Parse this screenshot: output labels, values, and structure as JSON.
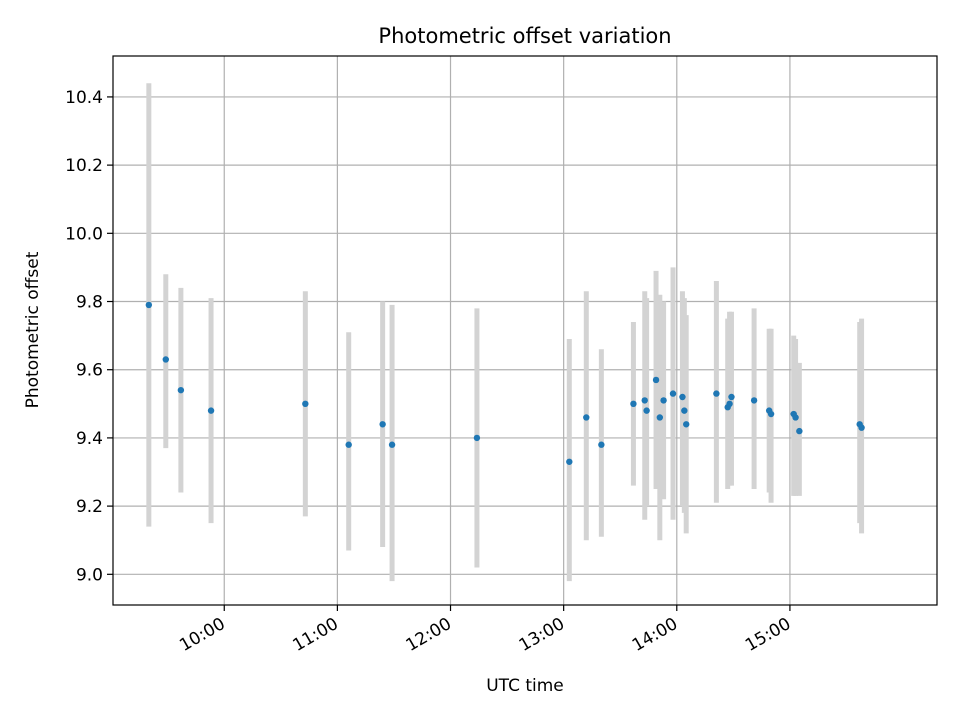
{
  "chart_data": {
    "type": "scatter",
    "title": "Photometric offset variation",
    "xlabel": "UTC time",
    "ylabel": "Photometric offset",
    "x_unit": "UTC time of day",
    "xlim": [
      "09:01",
      "16:18"
    ],
    "ylim": [
      8.91,
      10.52
    ],
    "grid": true,
    "colors": {
      "point": "#1f77b4",
      "errorbar": "#d3d3d3",
      "grid": "#b0b0b0"
    },
    "x_ticks": [
      "10:00",
      "11:00",
      "12:00",
      "13:00",
      "14:00",
      "15:00"
    ],
    "y_ticks": [
      "9.0",
      "9.2",
      "9.4",
      "9.6",
      "9.8",
      "10.0",
      "10.2",
      "10.4"
    ],
    "points": [
      {
        "x": "09:20",
        "y": 9.79,
        "ylow": 9.14,
        "yhigh": 10.44
      },
      {
        "x": "09:29",
        "y": 9.63,
        "ylow": 9.37,
        "yhigh": 9.88
      },
      {
        "x": "09:37",
        "y": 9.54,
        "ylow": 9.24,
        "yhigh": 9.84
      },
      {
        "x": "09:53",
        "y": 9.48,
        "ylow": 9.15,
        "yhigh": 9.81
      },
      {
        "x": "10:43",
        "y": 9.5,
        "ylow": 9.17,
        "yhigh": 9.83
      },
      {
        "x": "11:06",
        "y": 9.38,
        "ylow": 9.07,
        "yhigh": 9.71
      },
      {
        "x": "11:24",
        "y": 9.44,
        "ylow": 9.08,
        "yhigh": 9.8
      },
      {
        "x": "11:29",
        "y": 9.38,
        "ylow": 8.98,
        "yhigh": 9.79
      },
      {
        "x": "12:14",
        "y": 9.4,
        "ylow": 9.02,
        "yhigh": 9.78
      },
      {
        "x": "13:03",
        "y": 9.33,
        "ylow": 8.98,
        "yhigh": 9.69
      },
      {
        "x": "13:12",
        "y": 9.46,
        "ylow": 9.1,
        "yhigh": 9.83
      },
      {
        "x": "13:20",
        "y": 9.38,
        "ylow": 9.11,
        "yhigh": 9.66
      },
      {
        "x": "13:37",
        "y": 9.5,
        "ylow": 9.26,
        "yhigh": 9.74
      },
      {
        "x": "13:43",
        "y": 9.51,
        "ylow": 9.16,
        "yhigh": 9.83
      },
      {
        "x": "13:44",
        "y": 9.48,
        "ylow": 9.2,
        "yhigh": 9.81
      },
      {
        "x": "13:49",
        "y": 9.57,
        "ylow": 9.25,
        "yhigh": 9.89
      },
      {
        "x": "13:51",
        "y": 9.46,
        "ylow": 9.1,
        "yhigh": 9.82
      },
      {
        "x": "13:53",
        "y": 9.51,
        "ylow": 9.22,
        "yhigh": 9.8
      },
      {
        "x": "13:58",
        "y": 9.53,
        "ylow": 9.16,
        "yhigh": 9.9
      },
      {
        "x": "14:03",
        "y": 9.52,
        "ylow": 9.2,
        "yhigh": 9.83
      },
      {
        "x": "14:04",
        "y": 9.48,
        "ylow": 9.18,
        "yhigh": 9.81
      },
      {
        "x": "14:05",
        "y": 9.44,
        "ylow": 9.12,
        "yhigh": 9.76
      },
      {
        "x": "14:21",
        "y": 9.53,
        "ylow": 9.21,
        "yhigh": 9.86
      },
      {
        "x": "14:27",
        "y": 9.49,
        "ylow": 9.25,
        "yhigh": 9.75
      },
      {
        "x": "14:28",
        "y": 9.5,
        "ylow": 9.26,
        "yhigh": 9.77
      },
      {
        "x": "14:29",
        "y": 9.52,
        "ylow": 9.26,
        "yhigh": 9.77
      },
      {
        "x": "14:41",
        "y": 9.51,
        "ylow": 9.25,
        "yhigh": 9.78
      },
      {
        "x": "14:49",
        "y": 9.48,
        "ylow": 9.24,
        "yhigh": 9.72
      },
      {
        "x": "14:50",
        "y": 9.47,
        "ylow": 9.21,
        "yhigh": 9.72
      },
      {
        "x": "15:02",
        "y": 9.47,
        "ylow": 9.23,
        "yhigh": 9.7
      },
      {
        "x": "15:03",
        "y": 9.46,
        "ylow": 9.23,
        "yhigh": 9.69
      },
      {
        "x": "15:05",
        "y": 9.42,
        "ylow": 9.23,
        "yhigh": 9.62
      },
      {
        "x": "15:37",
        "y": 9.44,
        "ylow": 9.15,
        "yhigh": 9.74
      },
      {
        "x": "15:38",
        "y": 9.43,
        "ylow": 9.12,
        "yhigh": 9.75
      }
    ]
  }
}
